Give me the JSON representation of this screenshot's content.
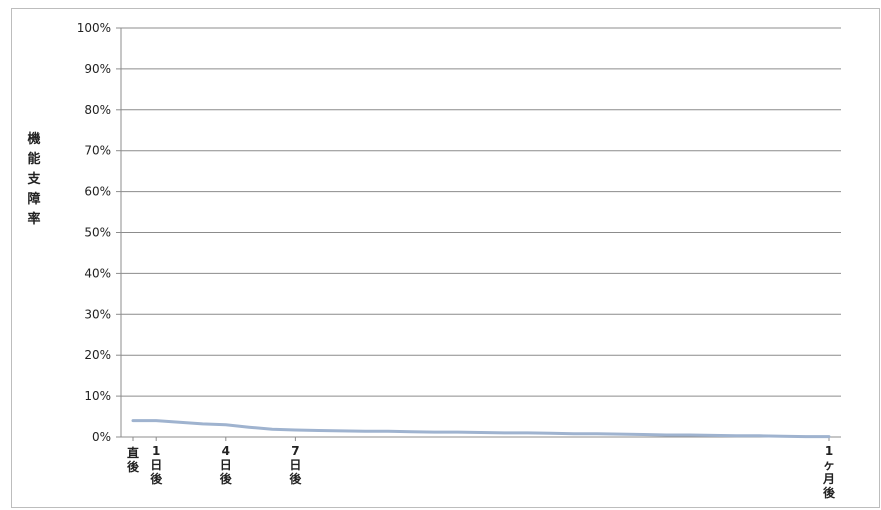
{
  "chart_data": {
    "type": "line",
    "title": "",
    "xlabel": "",
    "ylabel": "機能支障率",
    "y_ticks": [
      "0%",
      "10%",
      "20%",
      "30%",
      "40%",
      "50%",
      "60%",
      "70%",
      "80%",
      "90%",
      "100%"
    ],
    "ylim": [
      0,
      100
    ],
    "grid": true,
    "legend": "none",
    "x_day_range": [
      0,
      30
    ],
    "x_tick_labels": [
      {
        "day": 0,
        "label": "直後"
      },
      {
        "day": 1,
        "label": "1日後"
      },
      {
        "day": 4,
        "label": "4日後"
      },
      {
        "day": 7,
        "label": "7日後"
      },
      {
        "day": 30,
        "label": "1ヶ月後"
      }
    ],
    "series": [
      {
        "color": "#9fb3cf",
        "x": [
          0,
          1,
          2,
          3,
          4,
          5,
          6,
          7,
          8,
          9,
          10,
          11,
          12,
          13,
          14,
          15,
          16,
          17,
          18,
          19,
          20,
          21,
          22,
          23,
          24,
          25,
          26,
          27,
          28,
          29,
          30
        ],
        "values": [
          4.0,
          4.0,
          3.6,
          3.2,
          3.0,
          2.4,
          1.9,
          1.7,
          1.6,
          1.5,
          1.4,
          1.4,
          1.3,
          1.2,
          1.2,
          1.1,
          1.0,
          1.0,
          0.9,
          0.8,
          0.8,
          0.7,
          0.6,
          0.5,
          0.5,
          0.4,
          0.3,
          0.3,
          0.2,
          0.1,
          0.1
        ]
      }
    ]
  }
}
